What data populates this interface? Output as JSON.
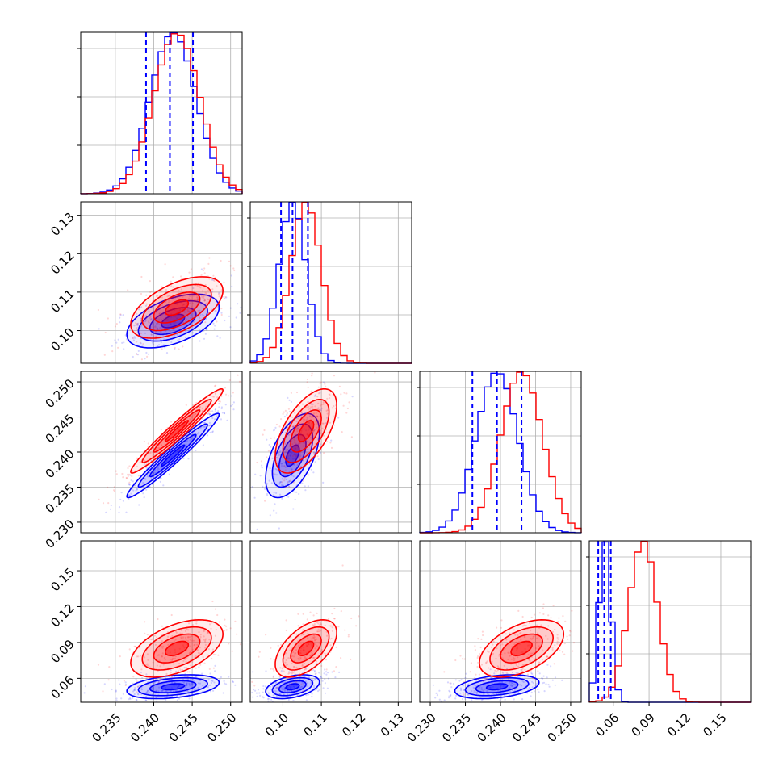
{
  "chart_data": {
    "type": "corner",
    "title": "",
    "colors": {
      "series_a": "#0000ff",
      "series_b": "#ff0000",
      "quantiles": "#0000ff"
    },
    "grid": true,
    "parameters": [
      {
        "label": "",
        "range": [
          0.2305,
          0.2515
        ],
        "ticks": [
          0.235,
          0.24,
          0.245,
          0.25
        ],
        "tick_labels": [
          "0.235",
          "0.240",
          "0.245",
          "0.250"
        ]
      },
      {
        "label": "",
        "range": [
          0.0915,
          0.1335
        ],
        "ticks": [
          0.1,
          0.11,
          0.12,
          0.13
        ],
        "tick_labels": [
          "0.10",
          "0.11",
          "0.12",
          "0.13"
        ]
      },
      {
        "label": "",
        "range": [
          0.2285,
          0.2515
        ],
        "ticks": [
          0.23,
          0.235,
          0.24,
          0.245,
          0.25
        ],
        "tick_labels": [
          "0.230",
          "0.235",
          "0.240",
          "0.245",
          "0.250"
        ]
      },
      {
        "label": "",
        "range": [
          0.04,
          0.175
        ],
        "ticks": [
          0.06,
          0.09,
          0.12,
          0.15
        ],
        "tick_labels": [
          "0.06",
          "0.09",
          "0.12",
          "0.15"
        ]
      }
    ],
    "series": [
      {
        "color": "#0000ff",
        "means": [
          0.2425,
          0.1025,
          0.2395,
          0.053
        ],
        "sigmas": [
          0.003,
          0.0035,
          0.003,
          0.005
        ],
        "correlations": [
          [
            0,
            1,
            0.5
          ],
          [
            0,
            2,
            0.97
          ],
          [
            0,
            3,
            0.35
          ],
          [
            1,
            2,
            0.55
          ],
          [
            1,
            3,
            0.4
          ],
          [
            2,
            3,
            0.35
          ]
        ],
        "quantiles": [
          [
            0.239,
            0.2421,
            0.2451
          ],
          [
            0.0995,
            0.1025,
            0.1065
          ],
          [
            0.236,
            0.2395,
            0.243
          ],
          [
            0.0475,
            0.0525,
            0.058
          ]
        ]
      },
      {
        "color": "#ff0000",
        "means": [
          0.243,
          0.106,
          0.243,
          0.085
        ],
        "sigmas": [
          0.003,
          0.004,
          0.003,
          0.012
        ],
        "correlations": [
          [
            0,
            1,
            0.55
          ],
          [
            0,
            2,
            0.97
          ],
          [
            0,
            3,
            0.5
          ],
          [
            1,
            2,
            0.6
          ],
          [
            1,
            3,
            0.55
          ],
          [
            2,
            3,
            0.5
          ]
        ]
      }
    ]
  }
}
